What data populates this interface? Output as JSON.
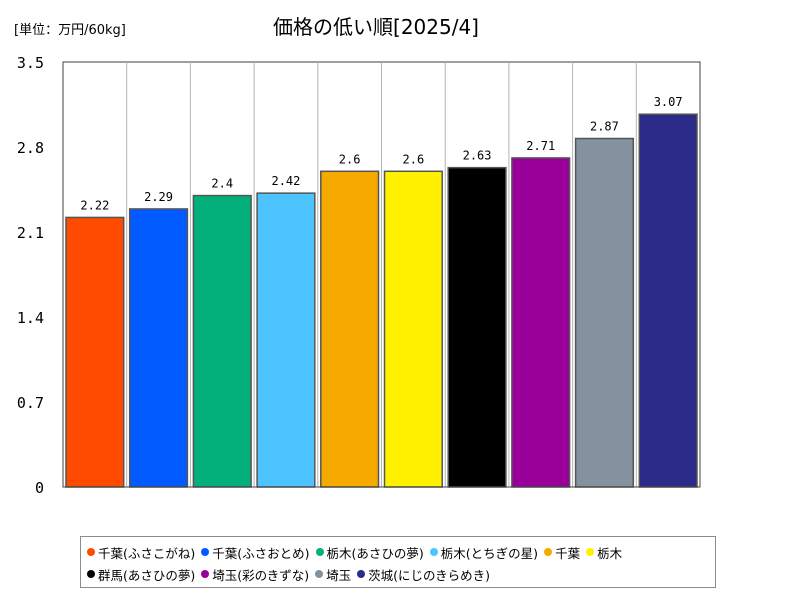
{
  "unit_label": "[単位：万円/60kg]",
  "chart_data": {
    "type": "bar",
    "title": "価格の低い順[2025/4]",
    "categories": [
      "千葉(ふさこがね)",
      "千葉(ふさおとめ)",
      "栃木(あさひの夢)",
      "栃木(とちぎの星)",
      "千葉",
      "栃木",
      "群馬(あさひの夢)",
      "埼玉(彩のきずな)",
      "埼玉",
      "茨城(にじのきらめき)"
    ],
    "values": [
      2.22,
      2.29,
      2.4,
      2.42,
      2.6,
      2.6,
      2.63,
      2.71,
      2.87,
      3.07
    ],
    "value_labels": [
      "2.22",
      "2.29",
      "2.4",
      "2.42",
      "2.6",
      "2.6",
      "2.63",
      "2.71",
      "2.87",
      "3.07"
    ],
    "colors": [
      "#ff4b00",
      "#005aff",
      "#03af7a",
      "#4dc4ff",
      "#f6aa00",
      "#fff100",
      "#000000",
      "#990099",
      "#84919e",
      "#2b2b8a"
    ],
    "ylim": [
      0,
      3.5
    ],
    "yticks": [
      "0",
      "0.7",
      "1.4",
      "2.1",
      "2.8",
      "3.5"
    ],
    "grid": "vertical",
    "legend_position": "bottom",
    "xlabel": "",
    "ylabel": ""
  }
}
